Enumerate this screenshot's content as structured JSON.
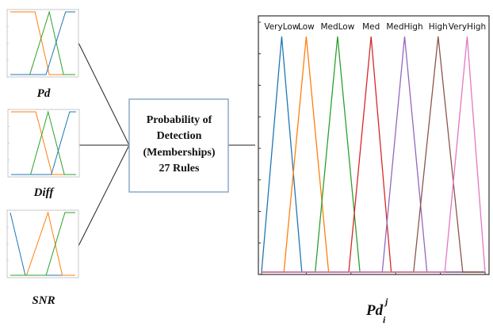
{
  "inputs": [
    {
      "label": "Pd",
      "lines": [
        {
          "color": "#ff7f0e",
          "points": [
            [
              0,
              1
            ],
            [
              0.38,
              1
            ],
            [
              0.6,
              0
            ],
            [
              1,
              0
            ]
          ]
        },
        {
          "color": "#2ca02c",
          "points": [
            [
              0,
              0
            ],
            [
              0.3,
              0
            ],
            [
              0.6,
              1
            ],
            [
              0.82,
              0
            ],
            [
              1,
              0
            ]
          ]
        },
        {
          "color": "#1f77b4",
          "points": [
            [
              0,
              0
            ],
            [
              0.55,
              0
            ],
            [
              0.85,
              1
            ],
            [
              1,
              1
            ]
          ]
        }
      ]
    },
    {
      "label": "Diff",
      "lines": [
        {
          "color": "#ff7f0e",
          "points": [
            [
              0,
              1
            ],
            [
              0.38,
              1
            ],
            [
              0.63,
              0
            ],
            [
              1,
              0
            ]
          ]
        },
        {
          "color": "#2ca02c",
          "points": [
            [
              0,
              0
            ],
            [
              0.3,
              0
            ],
            [
              0.57,
              1
            ],
            [
              0.82,
              0
            ],
            [
              1,
              0
            ]
          ]
        },
        {
          "color": "#1f77b4",
          "points": [
            [
              0,
              0
            ],
            [
              0.62,
              0
            ],
            [
              0.9,
              1
            ],
            [
              1,
              1
            ]
          ]
        }
      ]
    },
    {
      "label": "SNR",
      "lines": [
        {
          "color": "#1f77b4",
          "points": [
            [
              0,
              1
            ],
            [
              0.23,
              0
            ],
            [
              1,
              0
            ]
          ]
        },
        {
          "color": "#ff7f0e",
          "points": [
            [
              0,
              0
            ],
            [
              0.25,
              0
            ],
            [
              0.58,
              1
            ],
            [
              0.8,
              0
            ],
            [
              1,
              0
            ]
          ]
        },
        {
          "color": "#2ca02c",
          "points": [
            [
              0,
              0
            ],
            [
              0.55,
              0
            ],
            [
              0.84,
              1
            ],
            [
              1,
              1
            ]
          ]
        }
      ]
    }
  ],
  "center_box": {
    "lines": [
      "Probability of",
      "Detection",
      "(Memberships)",
      "27 Rules"
    ]
  },
  "output_chart": {
    "xlabel_base": "Pd",
    "xlabel_sup": "j",
    "xlabel_sub": "i",
    "ylim": [
      0,
      1
    ],
    "sets": [
      {
        "name": "VeryLow",
        "color": "#1f77b4",
        "a": 0.0,
        "b": 0.09,
        "c": 0.18
      },
      {
        "name": "Low",
        "color": "#ff7f0e",
        "a": 0.1,
        "b": 0.2,
        "c": 0.3
      },
      {
        "name": "MedLow",
        "color": "#2ca02c",
        "a": 0.24,
        "b": 0.34,
        "c": 0.44
      },
      {
        "name": "Med",
        "color": "#d62728",
        "a": 0.39,
        "b": 0.49,
        "c": 0.58
      },
      {
        "name": "MedHigh",
        "color": "#9467bd",
        "a": 0.54,
        "b": 0.64,
        "c": 0.74
      },
      {
        "name": "High",
        "color": "#8c564b",
        "a": 0.68,
        "b": 0.79,
        "c": 0.9
      },
      {
        "name": "VeryHigh",
        "color": "#e377c2",
        "a": 0.82,
        "b": 0.92,
        "c": 1.0
      }
    ]
  }
}
